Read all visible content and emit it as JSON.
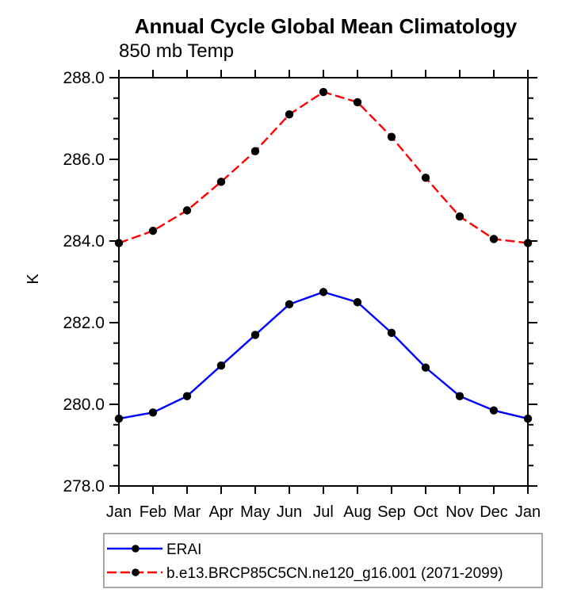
{
  "title": "Annual Cycle Global Mean Climatology",
  "subtitle": "850 mb Temp",
  "ylabel": "K",
  "colors": {
    "erai_line": "#0000ff",
    "model_line": "#ff0000",
    "marker": "#000000",
    "axis": "#000000",
    "legend_border": "#8c8c8c",
    "background": "#ffffff"
  },
  "chart_data": {
    "type": "line",
    "title": "Annual Cycle Global Mean Climatology",
    "subtitle": "850 mb Temp",
    "xlabel": "",
    "ylabel": "K",
    "categories": [
      "Jan",
      "Feb",
      "Mar",
      "Apr",
      "May",
      "Jun",
      "Jul",
      "Aug",
      "Sep",
      "Oct",
      "Nov",
      "Dec",
      "Jan"
    ],
    "ylim": [
      278.0,
      288.0
    ],
    "ytick_step": 2.0,
    "yminor_step": 0.5,
    "ytick_format_decimals": 1,
    "grid": false,
    "legend_position": "bottom-left",
    "series": [
      {
        "name": "ERAI",
        "color": "#0000ff",
        "line_style": "solid",
        "marker": "circle",
        "marker_color": "#000000",
        "values": [
          279.65,
          279.8,
          280.2,
          280.95,
          281.7,
          282.45,
          282.75,
          282.5,
          281.75,
          280.9,
          280.2,
          279.85,
          279.65
        ]
      },
      {
        "name": "b.e13.BRCP85C5CN.ne120_g16.001 (2071-2099)",
        "color": "#ff0000",
        "line_style": "dashed",
        "marker": "circle",
        "marker_color": "#000000",
        "values": [
          283.95,
          284.25,
          284.75,
          285.45,
          286.2,
          287.1,
          287.65,
          287.4,
          286.55,
          285.55,
          284.6,
          284.05,
          283.95
        ]
      }
    ]
  }
}
